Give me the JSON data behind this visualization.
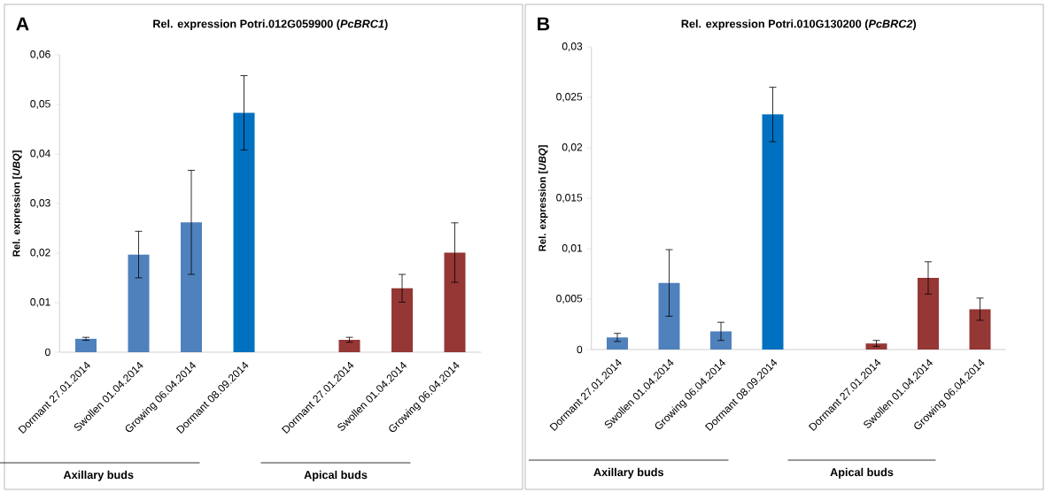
{
  "chart_data": [
    {
      "type": "bar",
      "title": "Rel. expression Potri.012G059900  (*PcBRC1*)",
      "ylabel": "Rel. expression [*UBQ*]",
      "categories": [
        "Dormant 27.01.2014",
        "Swollen 01.04.2014",
        "Growing 06.04.2014",
        "Dormant 08.09.2014",
        null,
        "Dormant 27.01.2014",
        "Swollen 01.04.2014",
        "Growing 06.04.2014"
      ],
      "values": [
        0.0027,
        0.0197,
        0.0262,
        0.0483,
        null,
        0.0025,
        0.0129,
        0.0201
      ],
      "errors": [
        0.0003,
        0.0047,
        0.0105,
        0.0075,
        null,
        0.0005,
        0.0028,
        0.006
      ],
      "colors": [
        "#4f81bd",
        "#4f81bd",
        "#4f81bd",
        "#0070c0",
        "#4f81bd",
        "#953735",
        "#953735",
        "#953735"
      ],
      "ylim": [
        0,
        0.06
      ],
      "yticks": [
        0,
        {
          "value": 0.01,
          "label": "0,01"
        },
        {
          "value": 0.02,
          "label": "0,02"
        },
        {
          "value": 0.03,
          "label": "0,03"
        },
        {
          "value": 0.04,
          "label": "0,04"
        },
        {
          "value": 0.05,
          "label": "0,05"
        },
        {
          "value": 0.06,
          "label": "0,06"
        }
      ],
      "annotations": [
        "A",
        "Axillary buds",
        "Apical buds"
      ]
    },
    {
      "type": "bar",
      "title": "Rel. expression Potri.010G130200  (*PcBRC2*)",
      "ylabel": "Rel. expression [*UBQ*]",
      "categories": [
        "Dormant 27.01.2014",
        "Swollen 01.04.2014",
        "Growing 06.04.2014",
        "Dormant 08.09.2014",
        null,
        "Dormant 27.01.2014",
        "Swollen 01.04.2014",
        "Growing 06.04.2014"
      ],
      "values": [
        0.0012,
        0.0066,
        0.0018,
        0.0233,
        null,
        0.0006,
        0.0071,
        0.004
      ],
      "errors": [
        0.0004,
        0.0033,
        0.0009,
        0.0027,
        null,
        0.0003,
        0.0016,
        0.0011
      ],
      "colors": [
        "#4f81bd",
        "#4f81bd",
        "#4f81bd",
        "#0070c0",
        "#4f81bd",
        "#953735",
        "#953735",
        "#953735"
      ],
      "ylim": [
        0,
        0.03
      ],
      "yticks": [
        0,
        {
          "value": 0.005,
          "label": "0,005"
        },
        {
          "value": 0.01,
          "label": "0,01"
        },
        {
          "value": 0.015,
          "label": "0,015"
        },
        {
          "value": 0.02,
          "label": "0,02"
        },
        {
          "value": 0.025,
          "label": "0,025"
        },
        {
          "value": 0.03,
          "label": "0,03"
        }
      ],
      "annotations": [
        "B",
        "Axillary buds",
        "Apical buds"
      ]
    }
  ]
}
